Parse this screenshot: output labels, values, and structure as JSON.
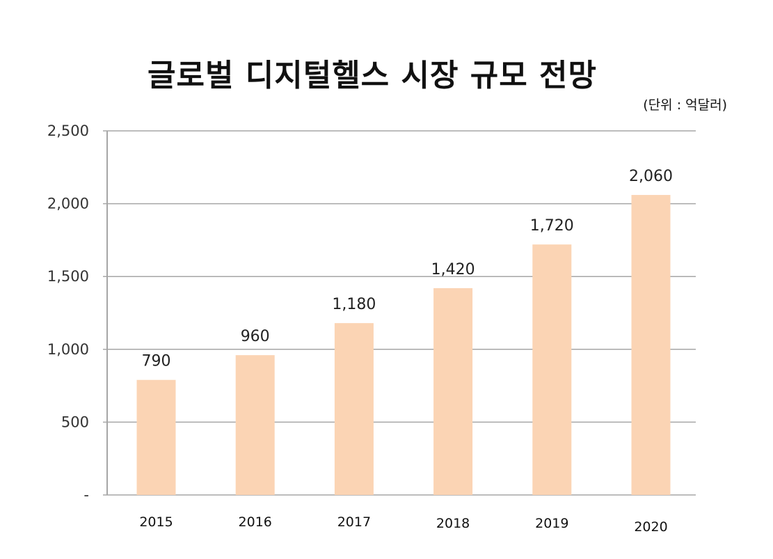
{
  "chart_data": {
    "type": "bar",
    "title": "글로벌 디지털헬스 시장 규모 전망",
    "subtitle": "(단위 : 억달러)",
    "categories": [
      "2015",
      "2016",
      "2017",
      "2018",
      "2019",
      "2020"
    ],
    "values": [
      790,
      960,
      1180,
      1420,
      1720,
      2060
    ],
    "data_labels": [
      "790",
      "960",
      "1,180",
      "1,420",
      "1,720",
      "2,060"
    ],
    "y_ticks": [
      0,
      500,
      1000,
      1500,
      2000,
      2500
    ],
    "y_tick_labels": [
      "-",
      "500",
      "1,000",
      "1,500",
      "2,000",
      "2,500"
    ],
    "ylim": [
      0,
      2500
    ],
    "xlabel": "",
    "ylabel": "",
    "grid": true,
    "bar_color": "#FBD4B4",
    "grid_color": "#A6A6A6"
  }
}
